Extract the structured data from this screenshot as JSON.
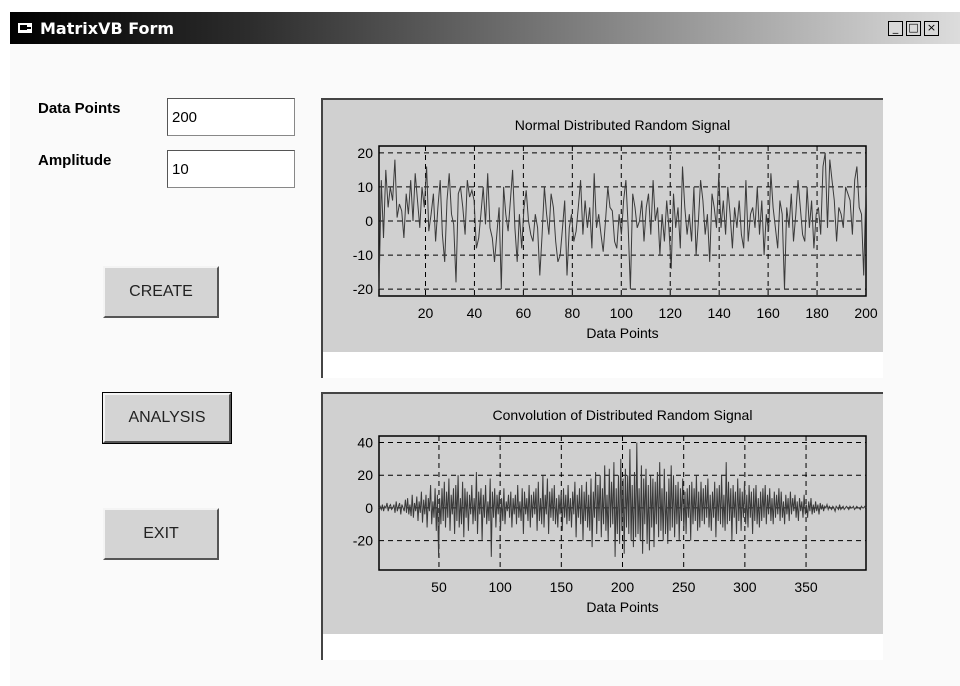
{
  "window": {
    "title": "MatrixVB Form",
    "minimize": "_",
    "maximize": "□",
    "close": "×"
  },
  "form": {
    "data_points": {
      "label": "Data Points",
      "value": "200"
    },
    "amplitude": {
      "label": "Amplitude",
      "value": "10"
    }
  },
  "buttons": {
    "create": "CREATE",
    "analysis": "ANALYSIS",
    "exit": "EXIT"
  },
  "colors": {
    "plot_bg": "#d0d0d0",
    "trace": "#3a3a3a"
  },
  "chart_data": [
    {
      "type": "line",
      "title": "Normal Distributed Random Signal",
      "xlabel": "Data Points",
      "ylabel": "",
      "xlim": [
        1,
        200
      ],
      "ylim": [
        -22,
        22
      ],
      "xticks": [
        20,
        40,
        60,
        80,
        100,
        120,
        140,
        160,
        180,
        200
      ],
      "yticks": [
        20,
        10,
        0,
        -10,
        -20
      ],
      "grid": true,
      "series": [
        {
          "y": [
            -20,
            12,
            -5,
            15,
            4,
            10,
            6,
            18,
            1,
            5,
            3,
            -5,
            8,
            2,
            12,
            0,
            14,
            6,
            -2,
            10,
            4,
            16,
            -3,
            2,
            8,
            -6,
            4,
            12,
            -4,
            -12,
            6,
            14,
            2,
            -1,
            -18,
            8,
            10,
            4,
            -4,
            12,
            7,
            9,
            6,
            -8,
            -5,
            2,
            10,
            -1,
            14,
            -2,
            -5,
            -12,
            -4,
            4,
            -20,
            10,
            2,
            -3,
            6,
            15,
            -2,
            -12,
            2,
            -8,
            4,
            9,
            0,
            -4,
            -6,
            2,
            -2,
            -16,
            -4,
            10,
            2,
            -4,
            8,
            4,
            -6,
            -12,
            -10,
            -2,
            6,
            -16,
            -2,
            2,
            -6,
            -3,
            4,
            12,
            -4,
            6,
            -2,
            4,
            -8,
            14,
            -2,
            2,
            -4,
            -9,
            0,
            10,
            4,
            3,
            -6,
            -8,
            2,
            -4,
            6,
            12,
            -2,
            -20,
            8,
            4,
            -2,
            0,
            6,
            -6,
            4,
            8,
            -4,
            12,
            0,
            4,
            -10,
            2,
            -6,
            6,
            -2,
            -14,
            8,
            -2,
            4,
            -8,
            16,
            4,
            -4,
            2,
            -6,
            10,
            -10,
            0,
            12,
            6,
            -4,
            2,
            -12,
            8,
            4,
            -2,
            14,
            -2,
            6,
            -4,
            10,
            2,
            -8,
            4,
            -2,
            6,
            -4,
            -8,
            12,
            -6,
            2,
            4,
            -2,
            10,
            -4,
            6,
            -10,
            2,
            -3,
            14,
            4,
            -2,
            -8,
            6,
            2,
            -20,
            4,
            -2,
            8,
            -6,
            2,
            12,
            4,
            -4,
            -6,
            10,
            -2,
            6,
            -8,
            2,
            4,
            -4,
            16,
            20,
            -2,
            18,
            12,
            6,
            -6,
            4,
            2,
            -2,
            10,
            8,
            6,
            -4,
            12,
            16,
            4,
            2,
            -16,
            10
          ]
        }
      ]
    },
    {
      "type": "line",
      "title": "Convolution of Distributed Random Signal",
      "xlabel": "Data Points",
      "ylabel": "",
      "xlim": [
        1,
        399
      ],
      "ylim": [
        -38,
        44
      ],
      "xticks": [
        50,
        100,
        150,
        200,
        250,
        300,
        350
      ],
      "yticks": [
        40,
        20,
        0,
        -20
      ],
      "grid": true,
      "series": [
        {
          "y": [
            0,
            1,
            -1,
            2,
            -2,
            1,
            0,
            3,
            -2,
            1,
            2,
            -1,
            0,
            2,
            -3,
            4,
            -2,
            1,
            3,
            -4,
            2,
            0,
            -2,
            5,
            -3,
            6,
            -4,
            2,
            -5,
            8,
            -6,
            3,
            -2,
            7,
            -8,
            4,
            -3,
            10,
            -9,
            5,
            -4,
            8,
            -12,
            6,
            -2,
            14,
            -10,
            4,
            -6,
            12,
            -14,
            8,
            -30,
            6,
            -10,
            12,
            -8,
            16,
            -12,
            10,
            -6,
            18,
            -14,
            8,
            -4,
            12,
            -16,
            14,
            -8,
            20,
            -12,
            6,
            -10,
            16,
            -18,
            12,
            -6,
            10,
            -14,
            8,
            -4,
            14,
            -10,
            6,
            -8,
            22,
            -16,
            10,
            -4,
            12,
            -20,
            8,
            -6,
            14,
            -10,
            4,
            -8,
            18,
            -30,
            10,
            -6,
            12,
            -12,
            8,
            -4,
            10,
            -14,
            6,
            -8,
            12,
            -10,
            4,
            -2,
            8,
            -6,
            10,
            -12,
            6,
            -4,
            8,
            -10,
            14,
            -6,
            4,
            -8,
            12,
            -16,
            10,
            -4,
            6,
            -8,
            14,
            -12,
            8,
            -6,
            10,
            -4,
            12,
            -14,
            16,
            -8,
            6,
            -10,
            20,
            -12,
            8,
            -4,
            18,
            -16,
            10,
            -6,
            12,
            -8,
            14,
            -10,
            6,
            -12,
            8,
            -4,
            10,
            -14,
            12,
            -6,
            8,
            -10,
            14,
            -8,
            6,
            -12,
            10,
            -4,
            16,
            -18,
            8,
            -6,
            12,
            -10,
            14,
            -20,
            10,
            -8,
            16,
            -12,
            8,
            -14,
            18,
            -24,
            10,
            -6,
            22,
            -16,
            14,
            -8,
            20,
            -18,
            12,
            -10,
            26,
            -14,
            8,
            -20,
            24,
            -12,
            16,
            -10,
            28,
            -30,
            12,
            -16,
            20,
            -22,
            30,
            -14,
            18,
            -28,
            24,
            -12,
            20,
            -16,
            36,
            -20,
            14,
            -24,
            22,
            -18,
            40,
            -16,
            12,
            -20,
            26,
            -28,
            18,
            -10,
            24,
            -22,
            14,
            -26,
            20,
            -12,
            18,
            -24,
            16,
            -10,
            22,
            -18,
            28,
            -14,
            12,
            -20,
            24,
            -16,
            10,
            -22,
            18,
            -14,
            26,
            -12,
            20,
            -18,
            14,
            -10,
            16,
            -20,
            12,
            -8,
            18,
            -14,
            10,
            -16,
            12,
            -6,
            14,
            -20,
            16,
            -10,
            12,
            -8,
            20,
            -14,
            10,
            -12,
            16,
            -8,
            12,
            -10,
            14,
            -6,
            18,
            -12,
            8,
            -14,
            10,
            -6,
            16,
            -18,
            12,
            -8,
            14,
            -10,
            20,
            -12,
            8,
            -14,
            28,
            -10,
            16,
            -8,
            12,
            -20,
            14,
            -6,
            10,
            -16,
            18,
            -8,
            12,
            -14,
            10,
            -6,
            16,
            -10,
            8,
            -12,
            14,
            -6,
            10,
            -16,
            12,
            -8,
            14,
            -10,
            6,
            -12,
            10,
            -8,
            12,
            -6,
            14,
            -10,
            8,
            -4,
            12,
            -8,
            6,
            -10,
            10,
            -6,
            8,
            -4,
            12,
            -8,
            10,
            -6,
            4,
            -10,
            8,
            -4,
            6,
            -8,
            10,
            -4,
            6,
            -2,
            8,
            -6,
            4,
            -8,
            6,
            -2,
            4,
            -6,
            8,
            -4,
            2,
            -6,
            4,
            -2,
            6,
            -4,
            2,
            -3,
            4,
            -2,
            2,
            -4,
            3,
            -1,
            2,
            -2,
            1,
            0,
            2,
            -1,
            1,
            0,
            -1,
            1,
            0,
            -2,
            1,
            0,
            -1,
            2,
            -1,
            0,
            1,
            -1,
            0,
            1,
            0,
            -1,
            1,
            0,
            0,
            1,
            -1,
            0,
            1,
            0,
            0,
            -1,
            1,
            0,
            0,
            1,
            0
          ]
        }
      ]
    }
  ]
}
